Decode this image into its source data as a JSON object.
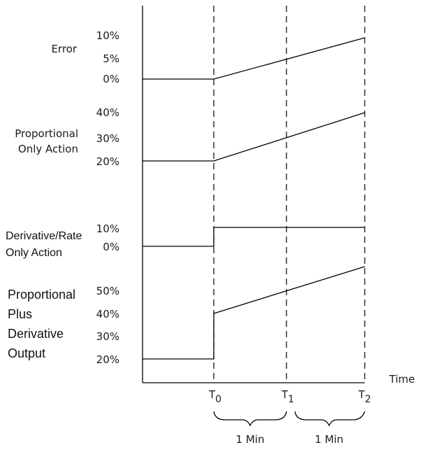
{
  "labels": {
    "error": "Error",
    "proportional_line1": "Proportional",
    "proportional_line2": "Only Action",
    "derivative_line1": "Derivative/Rate",
    "derivative_line2": "Only Action",
    "pd_line1": "Proportional",
    "pd_line2": "Plus",
    "pd_line3": "Derivative",
    "pd_line4": "Output",
    "time_axis": "Time"
  },
  "ticks": {
    "error": [
      "10%",
      "5%",
      "0%"
    ],
    "proportional": [
      "40%",
      "30%",
      "20%"
    ],
    "derivative": [
      "10%",
      "0%"
    ],
    "pd_output": [
      "50%",
      "40%",
      "30%",
      "20%"
    ]
  },
  "time_markers": [
    {
      "base": "T",
      "sub": "0"
    },
    {
      "base": "T",
      "sub": "1"
    },
    {
      "base": "T",
      "sub": "2"
    }
  ],
  "intervals": [
    "1 Min",
    "1 Min"
  ]
}
